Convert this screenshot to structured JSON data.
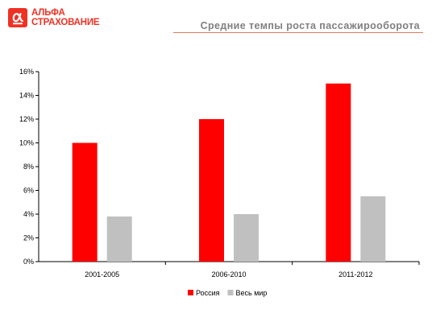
{
  "header": {
    "logo_line1": "АЛЬФА",
    "logo_line2": "СТРАХОВАНИЕ",
    "title": "Средние темпы роста пассажирооборота",
    "brand_color": "#ef3124"
  },
  "chart_data": {
    "type": "bar",
    "categories": [
      "2001-2005",
      "2006-2010",
      "2011-2012"
    ],
    "series": [
      {
        "name": "Россия",
        "values": [
          10,
          12,
          15
        ],
        "color": "#ff0000"
      },
      {
        "name": "Весь мир",
        "values": [
          3.8,
          4,
          5.5
        ],
        "color": "#c0c0c0"
      }
    ],
    "ylim": [
      0,
      16
    ],
    "yticks": [
      "0%",
      "2%",
      "4%",
      "6%",
      "8%",
      "10%",
      "12%",
      "14%",
      "16%"
    ],
    "ystep": 2,
    "grid": false,
    "legend": "bottom-center",
    "title": "",
    "xlabel": "",
    "ylabel": ""
  }
}
